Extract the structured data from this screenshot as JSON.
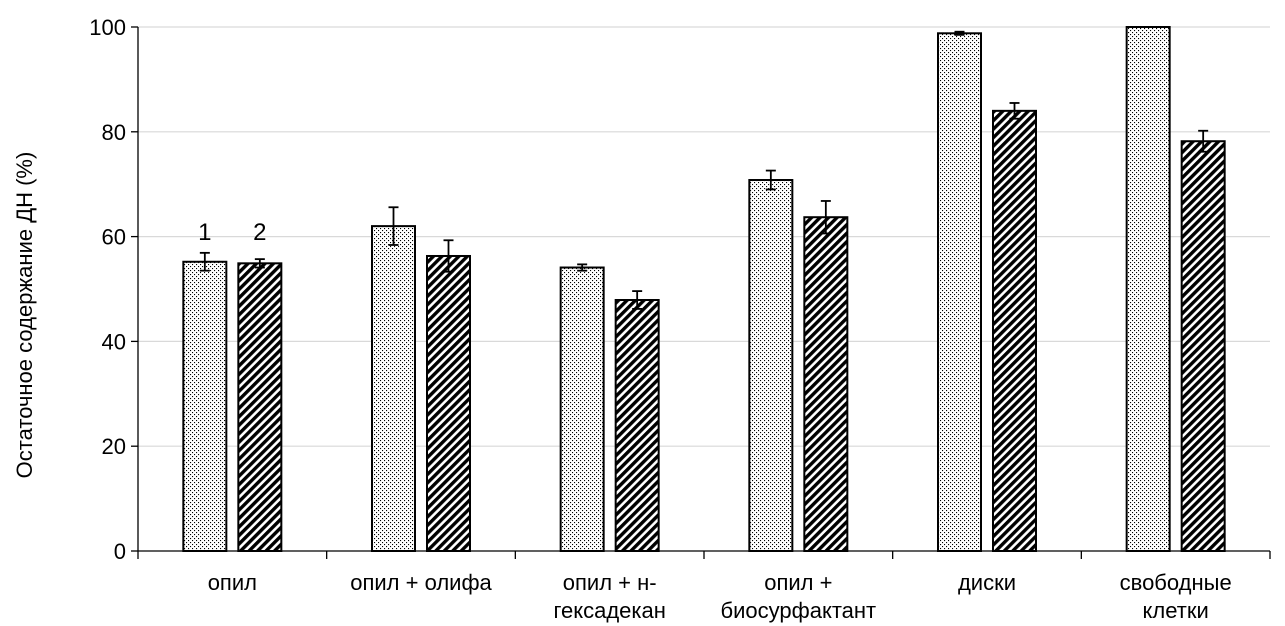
{
  "chart_data": {
    "type": "bar",
    "ylabel": "Остаточное содержание ДН (%)",
    "xlabel": "",
    "ylim": [
      0,
      100
    ],
    "yticks": [
      0,
      20,
      40,
      60,
      80,
      100
    ],
    "grid": true,
    "categories": [
      [
        "опил"
      ],
      [
        "опил + олифа"
      ],
      [
        "опил + н-",
        "гексадекан"
      ],
      [
        "опил +",
        "биосурфактант"
      ],
      [
        "диски"
      ],
      [
        "свободные",
        "клетки"
      ]
    ],
    "series": [
      {
        "name": "1",
        "pattern": "dots",
        "values": [
          55.2,
          62.0,
          54.1,
          70.8,
          98.8,
          100.0
        ],
        "errors": [
          1.7,
          3.6,
          0.6,
          1.8,
          0.3,
          0.0
        ]
      },
      {
        "name": "2",
        "pattern": "hatch",
        "values": [
          54.9,
          56.3,
          47.9,
          63.7,
          84.0,
          78.2
        ],
        "errors": [
          0.8,
          3.0,
          1.7,
          3.1,
          1.5,
          2.0
        ]
      }
    ],
    "series_labels_on_category": 0
  }
}
